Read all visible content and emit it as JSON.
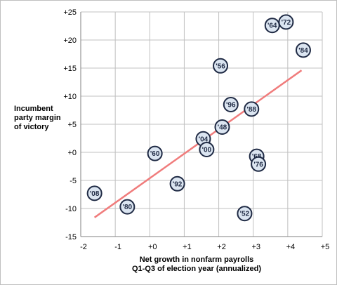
{
  "chart_data": {
    "type": "scatter",
    "title": "",
    "ylabel": "Incumbent party margin of victory",
    "xlabel_lines": [
      "Net growth in nonfarm payrolls",
      "Q1-Q3 of election year (annualized)"
    ],
    "xlim": [
      -2,
      5
    ],
    "ylim": [
      -15,
      25
    ],
    "x_ticks": [
      -2,
      -1,
      0,
      1,
      2,
      3,
      4,
      5
    ],
    "x_tick_labels": [
      "-2",
      "-1",
      "+0",
      "+1",
      "+2",
      "+3",
      "+4",
      "+5"
    ],
    "y_ticks": [
      -15,
      -10,
      -5,
      0,
      5,
      10,
      15,
      20,
      25
    ],
    "y_tick_labels": [
      "-15",
      "-10",
      "-5",
      "+0",
      "+5",
      "+10",
      "+15",
      "+20",
      "+25"
    ],
    "grid": true,
    "points": [
      {
        "label": "'08",
        "x": -1.6,
        "y": -7.3
      },
      {
        "label": "'80",
        "x": -0.65,
        "y": -9.7
      },
      {
        "label": "'60",
        "x": 0.15,
        "y": -0.2
      },
      {
        "label": "'92",
        "x": 0.8,
        "y": -5.6
      },
      {
        "label": "'04",
        "x": 1.55,
        "y": 2.4
      },
      {
        "label": "'00",
        "x": 1.65,
        "y": 0.5
      },
      {
        "label": "'48",
        "x": 2.1,
        "y": 4.5
      },
      {
        "label": "'56",
        "x": 2.05,
        "y": 15.4
      },
      {
        "label": "'96",
        "x": 2.35,
        "y": 8.5
      },
      {
        "label": "'52",
        "x": 2.75,
        "y": -10.9
      },
      {
        "label": "'88",
        "x": 2.95,
        "y": 7.7
      },
      {
        "label": "'68",
        "x": 3.1,
        "y": -0.7
      },
      {
        "label": "'76",
        "x": 3.15,
        "y": -2.1
      },
      {
        "label": "'64",
        "x": 3.55,
        "y": 22.6
      },
      {
        "label": "'72",
        "x": 3.95,
        "y": 23.2
      },
      {
        "label": "'84",
        "x": 4.45,
        "y": 18.2
      }
    ],
    "trendline": {
      "x": [
        -1.6,
        4.4
      ],
      "y": [
        -11.6,
        14.6
      ]
    },
    "colors": {
      "marker_fill": "#dbe5f1",
      "marker_stroke": "#1f2a44",
      "trendline": "#f07c7c",
      "grid": "#c0c0c0",
      "axis": "#808080"
    }
  }
}
